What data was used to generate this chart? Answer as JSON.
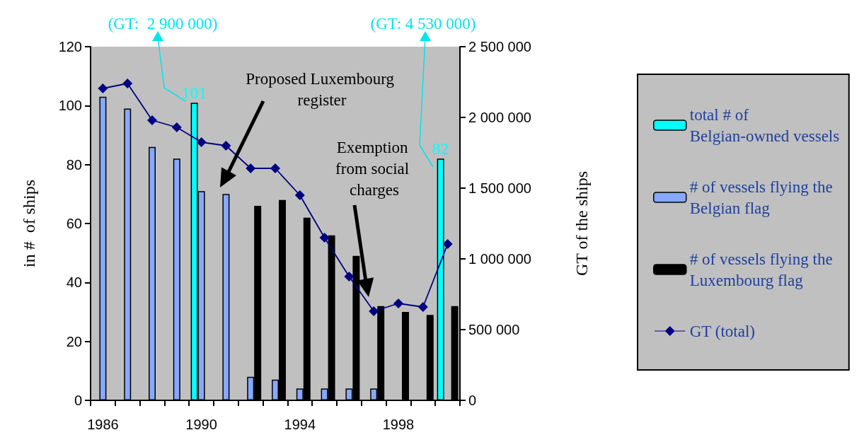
{
  "chart_data": {
    "type": "bar",
    "categories": [
      "1986",
      null,
      null,
      null,
      "1990",
      null,
      null,
      null,
      "1994",
      null,
      null,
      null,
      "1998",
      null,
      null
    ],
    "series": [
      {
        "name": "total # of Belgian-owned vessels",
        "color": "#00ffff",
        "values": [
          null,
          null,
          null,
          null,
          101,
          null,
          null,
          null,
          null,
          null,
          null,
          null,
          null,
          null,
          82
        ],
        "value_labels": [
          null,
          null,
          null,
          null,
          "101",
          null,
          null,
          null,
          null,
          null,
          null,
          null,
          null,
          null,
          "82"
        ]
      },
      {
        "name": "# of vessels flying the Belgian flag",
        "color": "#86a8ff",
        "values": [
          103,
          99,
          86,
          82,
          71,
          70,
          8,
          7,
          4,
          4,
          4,
          4,
          null,
          null,
          null
        ]
      },
      {
        "name": "# of vessels flying the Luxembourg flag",
        "color": "#000000",
        "values": [
          null,
          null,
          null,
          null,
          null,
          null,
          66,
          68,
          62,
          56,
          49,
          32,
          30,
          29,
          32
        ]
      },
      {
        "name": "GT (total)",
        "type": "line",
        "axis": "y2",
        "color": "#000080",
        "values": [
          2205000,
          2240000,
          1980000,
          1930000,
          1825000,
          1800000,
          1640000,
          1640000,
          1450000,
          1150000,
          875000,
          630000,
          685000,
          660000,
          1105000
        ]
      }
    ],
    "ylabel": "in #  of ships",
    "y2label": "GT of the ships",
    "ylim": [
      0,
      120
    ],
    "yticks": [
      0,
      20,
      40,
      60,
      80,
      100,
      120
    ],
    "y2lim": [
      0,
      2500000
    ],
    "y2ticks": [
      0,
      {
        "value": 500000,
        "label": "500 000"
      },
      {
        "value": 1000000,
        "label": "1 000 000"
      },
      {
        "value": 1500000,
        "label": "1 500 000"
      },
      {
        "value": 2000000,
        "label": "2 000 000"
      },
      {
        "value": 2500000,
        "label": "2 500 000"
      }
    ],
    "marker": "diamond",
    "legend": "right",
    "annotations": [
      "(GT:  2 900 000)",
      "(GT: 4 530 000)",
      "Proposed Luxembourg register",
      "Exemption from social charges"
    ]
  }
}
